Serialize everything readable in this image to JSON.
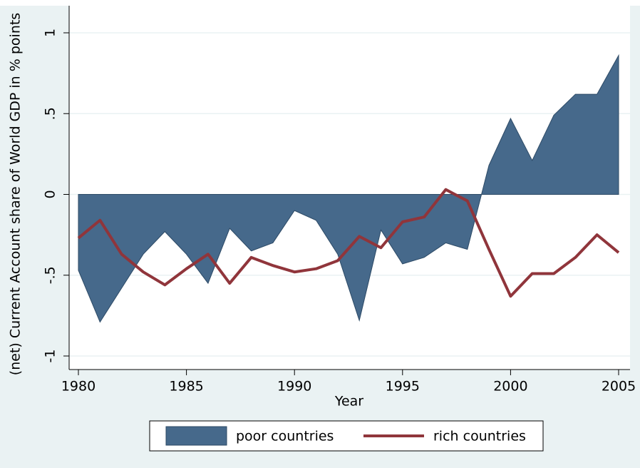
{
  "chart_data": {
    "type": "area-line",
    "y_label": "(net) Current Account share of World GDP in % points",
    "x_label": "Year",
    "x": [
      1980,
      1981,
      1982,
      1983,
      1984,
      1985,
      1986,
      1987,
      1988,
      1989,
      1990,
      1991,
      1992,
      1993,
      1994,
      1995,
      1996,
      1997,
      1998,
      1999,
      2000,
      2001,
      2002,
      2003,
      2004,
      2005
    ],
    "series": [
      {
        "name": "poor countries",
        "color": "#46698b",
        "kind": "area",
        "values": [
          -0.47,
          -0.79,
          -0.58,
          -0.37,
          -0.23,
          -0.37,
          -0.55,
          -0.21,
          -0.35,
          -0.3,
          -0.1,
          -0.16,
          -0.37,
          -0.78,
          -0.22,
          -0.43,
          -0.39,
          -0.3,
          -0.34,
          0.18,
          0.47,
          0.21,
          0.49,
          0.62,
          0.62,
          0.86
        ]
      },
      {
        "name": "rich countries",
        "color": "#90353b",
        "kind": "line",
        "values": [
          -0.27,
          -0.16,
          -0.37,
          -0.48,
          -0.56,
          -0.46,
          -0.37,
          -0.55,
          -0.39,
          -0.44,
          -0.48,
          -0.46,
          -0.41,
          -0.26,
          -0.33,
          -0.17,
          -0.14,
          0.03,
          -0.04,
          -0.34,
          -0.63,
          -0.49,
          -0.49,
          -0.39,
          -0.25,
          -0.36
        ]
      }
    ],
    "xlim": [
      1980,
      2005
    ],
    "xticks": [
      1980,
      1985,
      1990,
      1995,
      2000,
      2005
    ],
    "ylim": [
      -1,
      1
    ],
    "yticks": [
      -1,
      {
        "value": -0.5,
        "label": "-.5"
      },
      0,
      {
        "value": 0.5,
        "label": ".5"
      },
      1
    ],
    "grid": true,
    "legend": "bottom"
  }
}
